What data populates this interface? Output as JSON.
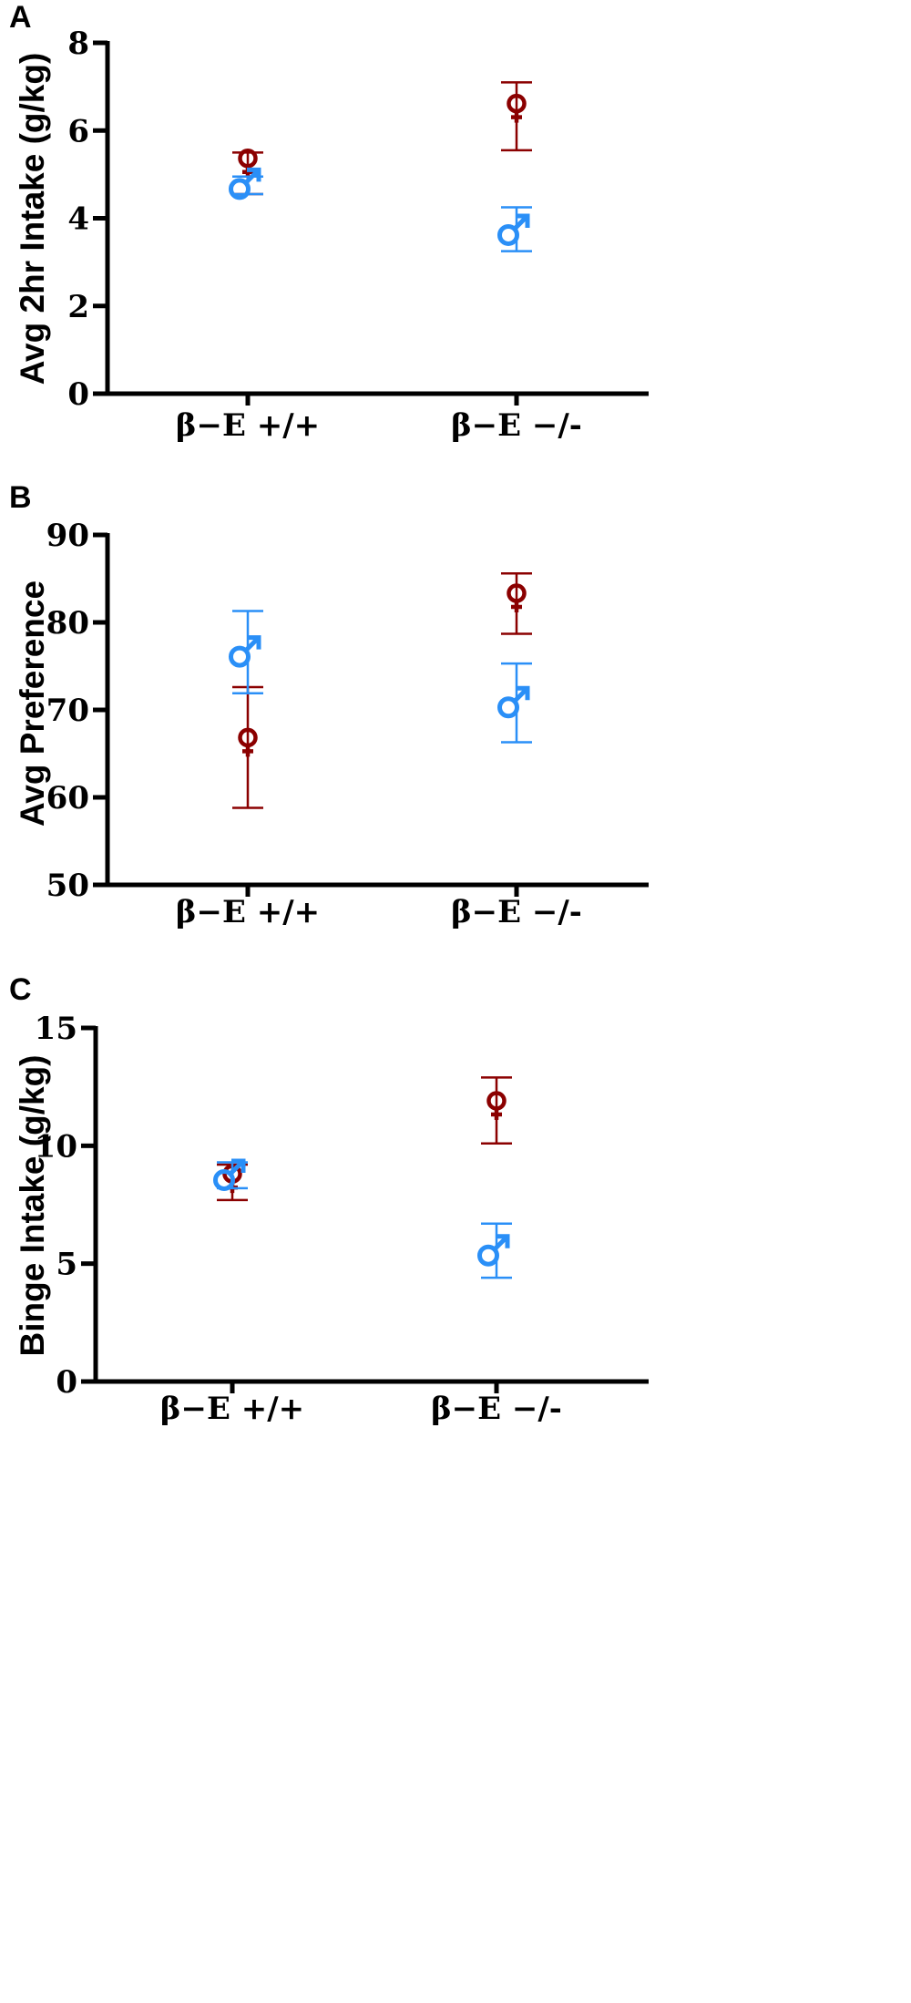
{
  "colors": {
    "female": "#8b0000",
    "male": "#2a8ff7",
    "axis": "#000000"
  },
  "icons": {
    "female": "female-symbol-icon",
    "male": "male-symbol-icon"
  },
  "chart_data": [
    {
      "panel": "A",
      "type": "scatter",
      "categories": [
        "β−E +/+",
        "β−E −/-"
      ],
      "ylabel": "Avg 2hr Intake (g/kg)",
      "xlabel": "",
      "ylim": [
        0,
        8
      ],
      "yticks": [
        0,
        2,
        4,
        6,
        8
      ],
      "grid": false,
      "series": [
        {
          "key": "female",
          "marker": "♀",
          "values": [
            5.2,
            6.45
          ],
          "err_low": [
            4.55,
            5.55
          ],
          "err_high": [
            5.5,
            7.1
          ]
        },
        {
          "key": "male",
          "marker": "♂",
          "values": [
            4.75,
            3.7
          ],
          "err_low": [
            4.55,
            3.25
          ],
          "err_high": [
            4.95,
            4.25
          ]
        }
      ]
    },
    {
      "panel": "B",
      "type": "scatter",
      "categories": [
        "β−E +/+",
        "β−E −/-"
      ],
      "ylabel": "Avg Preference",
      "xlabel": "",
      "ylim": [
        50,
        90
      ],
      "yticks": [
        50,
        60,
        70,
        80,
        90
      ],
      "grid": false,
      "series": [
        {
          "key": "female",
          "marker": "♀",
          "values": [
            66,
            82.5
          ],
          "err_low": [
            58.8,
            78.7
          ],
          "err_high": [
            72.6,
            85.6
          ]
        },
        {
          "key": "male",
          "marker": "♂",
          "values": [
            76.5,
            70.7
          ],
          "err_low": [
            71.9,
            66.3
          ],
          "err_high": [
            81.3,
            75.3
          ]
        }
      ]
    },
    {
      "panel": "C",
      "type": "scatter",
      "categories": [
        "β−E +/+",
        "β−E −/-"
      ],
      "ylabel": "Binge Intake (g/kg)",
      "xlabel": "",
      "ylim": [
        0,
        15
      ],
      "yticks": [
        0,
        5,
        10,
        15
      ],
      "grid": false,
      "series": [
        {
          "key": "female",
          "marker": "♀",
          "values": [
            8.5,
            11.6
          ],
          "err_low": [
            7.7,
            10.1
          ],
          "err_high": [
            9.2,
            12.9
          ]
        },
        {
          "key": "male",
          "marker": "♂",
          "values": [
            8.7,
            5.5
          ],
          "err_low": [
            8.2,
            4.4
          ],
          "err_high": [
            9.3,
            6.7
          ]
        }
      ]
    }
  ]
}
